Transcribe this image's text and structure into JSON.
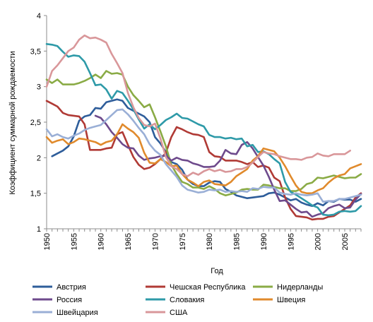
{
  "chart_data": {
    "type": "line",
    "xlabel": "Год",
    "ylabel": "Коэффициент суммарной рождаемости",
    "xlim": [
      1950,
      2008
    ],
    "ylim": [
      1,
      4
    ],
    "xticks": [
      1950,
      1955,
      1960,
      1965,
      1970,
      1975,
      1980,
      1985,
      1990,
      1995,
      2000,
      2005
    ],
    "yticks": [
      1,
      1.5,
      2,
      2.5,
      3,
      3.5,
      4
    ],
    "ytick_labels": [
      "1",
      "1,5",
      "2",
      "2,5",
      "3",
      "3,5",
      "4"
    ],
    "grid": false,
    "legend_position": "bottom",
    "series": [
      {
        "name": "Австрия",
        "color": "#2e5d9a",
        "x": [
          1951,
          1952,
          1953,
          1954,
          1955,
          1956,
          1957,
          1958,
          1959,
          1960,
          1961,
          1962,
          1963,
          1964,
          1965,
          1966,
          1967,
          1968,
          1969,
          1970,
          1971,
          1972,
          1973,
          1974,
          1975,
          1976,
          1977,
          1978,
          1979,
          1980,
          1981,
          1982,
          1983,
          1984,
          1985,
          1986,
          1987,
          1988,
          1989,
          1990,
          1991,
          1992,
          1993,
          1994,
          1995,
          1996,
          1997,
          1998,
          1999,
          2000,
          2001,
          2002,
          2003,
          2004,
          2005,
          2006,
          2007,
          2008
        ],
        "y": [
          2.02,
          2.06,
          2.1,
          2.16,
          2.3,
          2.52,
          2.58,
          2.6,
          2.7,
          2.69,
          2.78,
          2.8,
          2.82,
          2.8,
          2.7,
          2.66,
          2.62,
          2.58,
          2.5,
          2.29,
          2.2,
          2.08,
          1.94,
          1.91,
          1.83,
          1.69,
          1.63,
          1.6,
          1.6,
          1.65,
          1.67,
          1.66,
          1.56,
          1.52,
          1.47,
          1.45,
          1.43,
          1.44,
          1.45,
          1.46,
          1.5,
          1.51,
          1.48,
          1.44,
          1.4,
          1.42,
          1.37,
          1.34,
          1.32,
          1.36,
          1.33,
          1.39,
          1.38,
          1.42,
          1.41,
          1.41,
          1.38,
          1.42
        ]
      },
      {
        "name": "Чешская Республика",
        "color": "#b03a35",
        "x": [
          1950,
          1951,
          1952,
          1953,
          1954,
          1955,
          1956,
          1957,
          1958,
          1959,
          1960,
          1961,
          1962,
          1963,
          1964,
          1965,
          1966,
          1967,
          1968,
          1969,
          1970,
          1971,
          1972,
          1973,
          1974,
          1975,
          1976,
          1977,
          1978,
          1979,
          1980,
          1981,
          1982,
          1983,
          1984,
          1985,
          1986,
          1987,
          1988,
          1989,
          1990,
          1991,
          1992,
          1993,
          1994,
          1995,
          1996,
          1997,
          1998,
          1999,
          2000,
          2001,
          2002,
          2003,
          2004,
          2005,
          2006,
          2007,
          2008
        ],
        "y": [
          2.8,
          2.76,
          2.72,
          2.63,
          2.6,
          2.59,
          2.58,
          2.47,
          2.11,
          2.11,
          2.11,
          2.13,
          2.14,
          2.33,
          2.36,
          2.18,
          2.01,
          1.9,
          1.84,
          1.86,
          1.91,
          1.98,
          2.07,
          2.29,
          2.43,
          2.4,
          2.36,
          2.33,
          2.32,
          2.29,
          2.08,
          2.02,
          2.01,
          1.96,
          1.96,
          1.96,
          1.94,
          1.91,
          1.94,
          1.87,
          1.89,
          1.86,
          1.72,
          1.67,
          1.44,
          1.28,
          1.18,
          1.17,
          1.16,
          1.13,
          1.14,
          1.14,
          1.17,
          1.18,
          1.23,
          1.28,
          1.33,
          1.44,
          1.5
        ]
      },
      {
        "name": "Нидерланды",
        "color": "#8aab45",
        "x": [
          1950,
          1951,
          1952,
          1953,
          1954,
          1955,
          1956,
          1957,
          1958,
          1959,
          1960,
          1961,
          1962,
          1963,
          1964,
          1965,
          1966,
          1967,
          1968,
          1969,
          1970,
          1971,
          1972,
          1973,
          1974,
          1975,
          1976,
          1977,
          1978,
          1979,
          1980,
          1981,
          1982,
          1983,
          1984,
          1985,
          1986,
          1987,
          1988,
          1989,
          1990,
          1991,
          1992,
          1993,
          1994,
          1995,
          1996,
          1997,
          1998,
          1999,
          2000,
          2001,
          2002,
          2003,
          2004,
          2005,
          2006,
          2007,
          2008
        ],
        "y": [
          3.1,
          3.05,
          3.1,
          3.03,
          3.03,
          3.03,
          3.05,
          3.08,
          3.12,
          3.17,
          3.12,
          3.22,
          3.18,
          3.19,
          3.17,
          3.0,
          2.88,
          2.8,
          2.71,
          2.75,
          2.57,
          2.37,
          2.16,
          1.9,
          1.77,
          1.66,
          1.63,
          1.58,
          1.58,
          1.56,
          1.6,
          1.56,
          1.5,
          1.47,
          1.49,
          1.51,
          1.55,
          1.56,
          1.55,
          1.55,
          1.62,
          1.61,
          1.59,
          1.57,
          1.57,
          1.53,
          1.53,
          1.56,
          1.63,
          1.65,
          1.72,
          1.71,
          1.73,
          1.75,
          1.73,
          1.71,
          1.72,
          1.72,
          1.77
        ]
      },
      {
        "name": "Россия",
        "color": "#6e4a8c",
        "x": [
          1959,
          1960,
          1961,
          1962,
          1963,
          1964,
          1965,
          1966,
          1967,
          1968,
          1969,
          1970,
          1971,
          1972,
          1973,
          1974,
          1975,
          1976,
          1977,
          1978,
          1979,
          1980,
          1981,
          1982,
          1983,
          1984,
          1985,
          1986,
          1987,
          1988,
          1989,
          1990,
          1991,
          1992,
          1993,
          1994,
          1995,
          1996,
          1997,
          1998,
          1999,
          2000,
          2001,
          2002,
          2003,
          2004,
          2005,
          2006,
          2007,
          2008
        ],
        "y": [
          2.59,
          2.56,
          2.47,
          2.36,
          2.28,
          2.19,
          2.14,
          2.13,
          2.03,
          1.97,
          1.99,
          2.0,
          2.02,
          2.03,
          1.96,
          2.0,
          1.97,
          1.96,
          1.92,
          1.9,
          1.87,
          1.87,
          1.88,
          1.96,
          2.11,
          2.06,
          2.05,
          2.18,
          2.22,
          2.13,
          2.01,
          1.89,
          1.73,
          1.55,
          1.39,
          1.4,
          1.34,
          1.28,
          1.23,
          1.24,
          1.17,
          1.2,
          1.22,
          1.29,
          1.32,
          1.34,
          1.29,
          1.3,
          1.41,
          1.49
        ]
      },
      {
        "name": "Словакия",
        "color": "#2e9aa8",
        "x": [
          1950,
          1951,
          1952,
          1953,
          1954,
          1955,
          1956,
          1957,
          1958,
          1959,
          1960,
          1961,
          1962,
          1963,
          1964,
          1965,
          1966,
          1967,
          1968,
          1969,
          1970,
          1971,
          1972,
          1973,
          1974,
          1975,
          1976,
          1977,
          1978,
          1979,
          1980,
          1981,
          1982,
          1983,
          1984,
          1985,
          1986,
          1987,
          1988,
          1989,
          1990,
          1991,
          1992,
          1993,
          1994,
          1995,
          1996,
          1997,
          1998,
          1999,
          2000,
          2001,
          2002,
          2003,
          2004,
          2005,
          2006,
          2007,
          2008
        ],
        "y": [
          3.6,
          3.59,
          3.57,
          3.49,
          3.42,
          3.44,
          3.43,
          3.35,
          3.19,
          3.02,
          3.03,
          2.96,
          2.83,
          2.94,
          2.91,
          2.8,
          2.68,
          2.54,
          2.41,
          2.47,
          2.4,
          2.46,
          2.53,
          2.57,
          2.62,
          2.56,
          2.55,
          2.51,
          2.47,
          2.44,
          2.32,
          2.29,
          2.29,
          2.27,
          2.28,
          2.26,
          2.27,
          2.16,
          2.18,
          2.08,
          2.09,
          2.05,
          1.98,
          1.92,
          1.66,
          1.52,
          1.48,
          1.43,
          1.38,
          1.33,
          1.3,
          1.2,
          1.19,
          1.2,
          1.24,
          1.25,
          1.24,
          1.25,
          1.32
        ]
      },
      {
        "name": "Швеция",
        "color": "#e08a2c",
        "x": [
          1950,
          1951,
          1952,
          1953,
          1954,
          1955,
          1956,
          1957,
          1958,
          1959,
          1960,
          1961,
          1962,
          1963,
          1964,
          1965,
          1966,
          1967,
          1968,
          1969,
          1970,
          1971,
          1972,
          1973,
          1974,
          1975,
          1976,
          1977,
          1978,
          1979,
          1980,
          1981,
          1982,
          1983,
          1984,
          1985,
          1986,
          1987,
          1988,
          1989,
          1990,
          1991,
          1992,
          1993,
          1994,
          1995,
          1996,
          1997,
          1998,
          1999,
          2000,
          2001,
          2002,
          2003,
          2004,
          2005,
          2006,
          2007,
          2008
        ],
        "y": [
          2.29,
          2.21,
          2.24,
          2.26,
          2.19,
          2.22,
          2.27,
          2.26,
          2.24,
          2.22,
          2.18,
          2.22,
          2.24,
          2.33,
          2.47,
          2.41,
          2.36,
          2.28,
          2.07,
          1.93,
          1.92,
          1.98,
          1.94,
          1.88,
          1.89,
          1.77,
          1.69,
          1.65,
          1.6,
          1.66,
          1.68,
          1.63,
          1.62,
          1.61,
          1.66,
          1.74,
          1.79,
          1.84,
          1.96,
          2.02,
          2.13,
          2.11,
          2.09,
          2.0,
          1.88,
          1.74,
          1.61,
          1.52,
          1.5,
          1.5,
          1.54,
          1.57,
          1.65,
          1.71,
          1.75,
          1.77,
          1.85,
          1.88,
          1.91
        ]
      },
      {
        "name": "Швейцария",
        "color": "#9aafd6",
        "x": [
          1950,
          1951,
          1952,
          1953,
          1954,
          1955,
          1956,
          1957,
          1958,
          1959,
          1960,
          1961,
          1962,
          1963,
          1964,
          1965,
          1966,
          1967,
          1968,
          1969,
          1970,
          1971,
          1972,
          1973,
          1974,
          1975,
          1976,
          1977,
          1978,
          1979,
          1980,
          1981,
          1982,
          1983,
          1984,
          1985,
          1986,
          1987,
          1988,
          1989,
          1990,
          1991,
          1992,
          1993,
          1994,
          1995,
          1996,
          1997,
          1998,
          1999,
          2000,
          2001,
          2002,
          2003,
          2004,
          2005,
          2006,
          2007,
          2008
        ],
        "y": [
          2.4,
          2.3,
          2.33,
          2.29,
          2.27,
          2.31,
          2.34,
          2.39,
          2.42,
          2.44,
          2.46,
          2.53,
          2.6,
          2.67,
          2.68,
          2.61,
          2.52,
          2.42,
          2.33,
          2.19,
          2.1,
          2.04,
          1.91,
          1.82,
          1.73,
          1.61,
          1.55,
          1.53,
          1.51,
          1.52,
          1.55,
          1.54,
          1.55,
          1.52,
          1.53,
          1.52,
          1.53,
          1.52,
          1.57,
          1.56,
          1.59,
          1.58,
          1.58,
          1.51,
          1.49,
          1.48,
          1.5,
          1.48,
          1.47,
          1.48,
          1.5,
          1.38,
          1.39,
          1.39,
          1.42,
          1.42,
          1.44,
          1.46,
          1.48
        ]
      },
      {
        "name": "США",
        "color": "#d9979a",
        "x": [
          1950,
          1951,
          1952,
          1953,
          1954,
          1955,
          1956,
          1957,
          1958,
          1959,
          1960,
          1961,
          1962,
          1963,
          1964,
          1965,
          1966,
          1967,
          1968,
          1969,
          1970,
          1971,
          1972,
          1973,
          1974,
          1975,
          1976,
          1977,
          1978,
          1979,
          1980,
          1981,
          1982,
          1983,
          1984,
          1985,
          1986,
          1987,
          1988,
          1989,
          1990,
          1991,
          1992,
          1993,
          1994,
          1995,
          1996,
          1997,
          1998,
          1999,
          2000,
          2001,
          2002,
          2003,
          2004,
          2005,
          2006
        ],
        "y": [
          3.0,
          3.22,
          3.3,
          3.4,
          3.5,
          3.55,
          3.66,
          3.72,
          3.68,
          3.69,
          3.66,
          3.62,
          3.46,
          3.33,
          3.19,
          2.91,
          2.71,
          2.56,
          2.46,
          2.44,
          2.48,
          2.27,
          2.01,
          1.88,
          1.84,
          1.77,
          1.74,
          1.79,
          1.76,
          1.81,
          1.84,
          1.81,
          1.83,
          1.8,
          1.81,
          1.84,
          1.84,
          1.87,
          1.93,
          2.01,
          2.08,
          2.06,
          2.05,
          2.02,
          2.0,
          1.98,
          1.98,
          1.97,
          2.0,
          2.01,
          2.06,
          2.03,
          2.02,
          2.05,
          2.05,
          2.05,
          2.1
        ]
      }
    ]
  }
}
